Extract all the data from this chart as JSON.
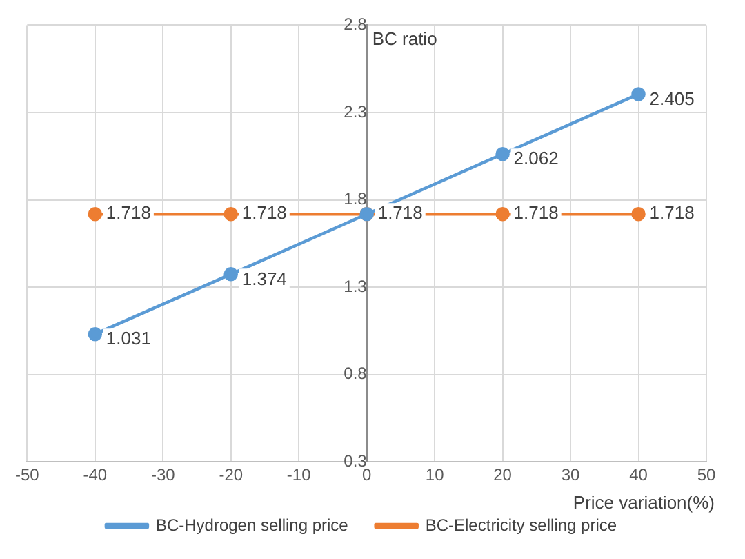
{
  "chart_data": {
    "type": "line",
    "xlabel": "Price variation(%)",
    "ylabel": "BC ratio",
    "x": [
      -40,
      -20,
      0,
      20,
      40
    ],
    "series": [
      {
        "name": "BC-Hydrogen selling price",
        "color": "#5b9bd5",
        "values": [
          1.031,
          1.374,
          1.718,
          2.062,
          2.405
        ],
        "value_labels": [
          "1.031",
          "1.374",
          null,
          "2.062",
          "2.405"
        ]
      },
      {
        "name": "BC-Electricity selling price",
        "color": "#ed7d31",
        "values": [
          1.718,
          1.718,
          1.718,
          1.718,
          1.718
        ],
        "value_labels": [
          "1.718",
          "1.718",
          "1.718",
          "1.718",
          "1.718"
        ]
      }
    ],
    "xlim": [
      -50,
      50
    ],
    "xticks": [
      -50,
      -40,
      -30,
      -20,
      -10,
      0,
      10,
      20,
      30,
      40,
      50
    ],
    "ylim": [
      0.3,
      2.8
    ],
    "yticks": [
      0.3,
      0.8,
      1.3,
      1.8,
      2.3,
      2.8
    ],
    "grid": true,
    "legend": "bottom",
    "marker": "circle",
    "line_style": "solid"
  }
}
